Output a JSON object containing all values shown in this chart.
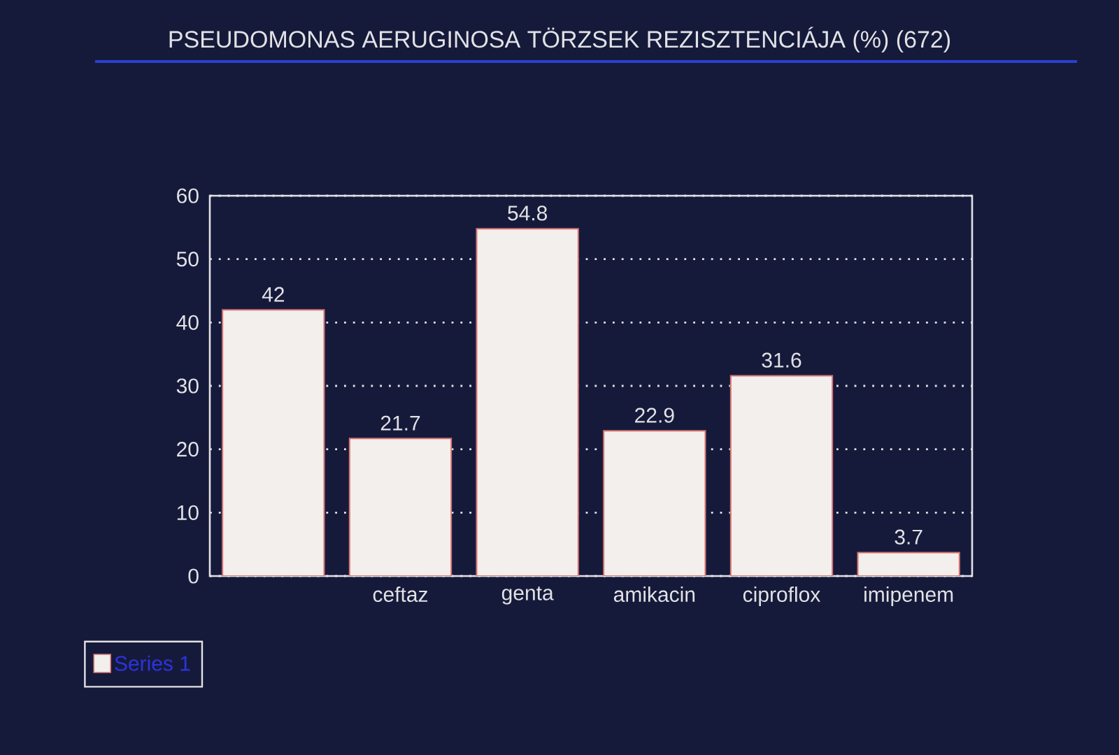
{
  "chart_data": {
    "type": "bar",
    "title": "PSEUDOMONAS AERUGINOSA TÖRZSEK REZISZTENCIÁJA (%) (672)",
    "categories": [
      null,
      "ceftaz",
      "genta",
      "amikacin",
      "ciproflox",
      "imipenem"
    ],
    "series": [
      {
        "name": "Series 1",
        "color": "#f2efec",
        "values": [
          42,
          21.7,
          54.8,
          22.9,
          31.6,
          3.7
        ]
      }
    ],
    "ylim": [
      0,
      60
    ],
    "yticks": [
      0,
      10,
      20,
      30,
      40,
      50,
      60
    ],
    "grid": "y",
    "legend": "bottom left",
    "data_labels": true
  }
}
